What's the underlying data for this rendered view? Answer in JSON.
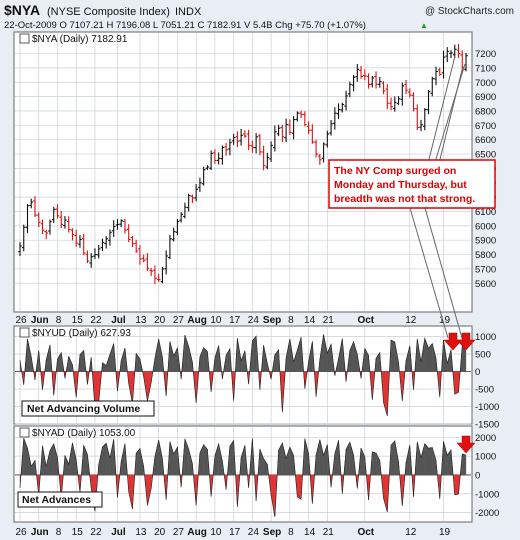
{
  "header": {
    "symbol": "$NYA",
    "name": "(NYSE Composite Index)",
    "exchange": "INDX",
    "copyright": "@ StockCharts.com",
    "quote": "22-Oct-2009   O 7107.21   H 7196.08   L 7051.21   C 7182.91   V 5.4B   Chg +75.70 (+1.07%)",
    "quote_arrow": "▲"
  },
  "colors": {
    "up": "#111111",
    "down": "#dd1111",
    "area_pos": "#555555",
    "area_neg": "#e03333",
    "grid": "#c8d0d8",
    "panel_bg": "#ffffff",
    "page_bg": "#e8eef4",
    "annotation": "#dd0000"
  },
  "date_labels": [
    "26",
    "Jun",
    "8",
    "15",
    "22",
    "Jul",
    "13",
    "20",
    "27",
    "Aug",
    "10",
    "17",
    "24",
    "Sep",
    "8",
    "14",
    "21",
    "Oct",
    "12",
    "19"
  ],
  "annotation": {
    "lines": [
      "The NY Comp surged on",
      "Monday and Thursday, but",
      "breadth was not that strong."
    ]
  },
  "chart_data": [
    {
      "type": "ohlc",
      "title": "$NYA (Daily) 7182.91",
      "legend": "$NYA (Daily) 7182.91",
      "ylim": [
        5400,
        7350
      ],
      "yticks": [
        5600,
        5700,
        5800,
        5900,
        6000,
        6100,
        6200,
        6300,
        6400,
        6500,
        6600,
        6700,
        6800,
        6900,
        7000,
        7100,
        7200
      ],
      "close": [
        5860,
        5990,
        6140,
        6165,
        6075,
        6025,
        5970,
        5950,
        6030,
        6115,
        6070,
        6010,
        6040,
        5975,
        5940,
        5880,
        5905,
        5810,
        5755,
        5785,
        5800,
        5840,
        5885,
        5910,
        5955,
        5995,
        6010,
        6035,
        5970,
        5905,
        5875,
        5825,
        5770,
        5760,
        5705,
        5685,
        5635,
        5625,
        5700,
        5790,
        5910,
        5960,
        6030,
        6080,
        6130,
        6210,
        6195,
        6255,
        6300,
        6390,
        6410,
        6505,
        6455,
        6470,
        6545,
        6530,
        6580,
        6615,
        6590,
        6630,
        6625,
        6560,
        6545,
        6620,
        6515,
        6420,
        6475,
        6560,
        6655,
        6680,
        6620,
        6705,
        6650,
        6740,
        6785,
        6775,
        6705,
        6665,
        6585,
        6500,
        6460,
        6570,
        6640,
        6710,
        6785,
        6810,
        6845,
        6905,
        6985,
        7035,
        7090,
        7040,
        7045,
        6985,
        7030,
        6985,
        7005,
        6940,
        6855,
        6830,
        6860,
        6885,
        6975,
        6945,
        6910,
        6815,
        6685,
        6705,
        6810,
        6935,
        7025,
        7075,
        7055,
        7175,
        7215,
        7205,
        7230,
        7200,
        7105,
        7185
      ]
    },
    {
      "type": "area",
      "title": "$NYUD (Daily) 627.93",
      "legend": "$NYUD (Daily) 627.93",
      "label": "Net Advancing Volume",
      "ylim": [
        -1500,
        1300
      ],
      "yticks": [
        -1500,
        -1000,
        -500,
        0,
        500,
        1000
      ],
      "values": [
        320,
        -380,
        930,
        420,
        -240,
        600,
        -520,
        340,
        760,
        -680,
        350,
        540,
        -200,
        430,
        190,
        -740,
        480,
        600,
        -370,
        410,
        -1060,
        -880,
        250,
        170,
        490,
        800,
        -560,
        310,
        670,
        -340,
        -920,
        510,
        360,
        -150,
        -840,
        -320,
        380,
        930,
        410,
        -700,
        860,
        450,
        670,
        -220,
        1040,
        720,
        270,
        -900,
        420,
        680,
        570,
        -580,
        390,
        740,
        -210,
        460,
        650,
        -830,
        950,
        310,
        590,
        -360,
        880,
        1010,
        -520,
        750,
        230,
        -220,
        480,
        620,
        -1160,
        390,
        930,
        270,
        610,
        980,
        -490,
        280,
        860,
        -720,
        340,
        1060,
        520,
        780,
        -120,
        370,
        940,
        -290,
        600,
        850,
        490,
        -200,
        660,
        460,
        -810,
        380,
        540,
        -890,
        -1270,
        900,
        840,
        260,
        -840,
        310,
        730,
        -520,
        930,
        270,
        950,
        660,
        800,
        380,
        -730,
        900,
        220,
        630,
        -650,
        -590,
        750,
        630
      ]
    },
    {
      "type": "area",
      "title": "$NYAD (Daily) 1053.00",
      "legend": "$NYAD (Daily) 1053.00",
      "label": "Net Advances",
      "ylim": [
        -2500,
        2600
      ],
      "yticks": [
        -2000,
        -1000,
        0,
        1000,
        2000
      ],
      "values": [
        -680,
        1960,
        1430,
        460,
        770,
        -1100,
        1550,
        450,
        1300,
        1650,
        920,
        -1240,
        1040,
        560,
        1700,
        810,
        -930,
        1580,
        1080,
        -700,
        -1930,
        540,
        1480,
        1690,
        890,
        1890,
        -1190,
        720,
        1660,
        -880,
        -1810,
        1150,
        1410,
        450,
        -1620,
        -720,
        980,
        1850,
        860,
        -1320,
        1770,
        1120,
        1470,
        -650,
        1920,
        1380,
        600,
        -1620,
        1170,
        1610,
        1360,
        -1150,
        1010,
        1650,
        740,
        -780,
        1540,
        1820,
        -1690,
        920,
        1570,
        -680,
        1940,
        -1380,
        1380,
        860,
        560,
        -1070,
        -2230,
        1320,
        1690,
        880,
        1480,
        1040,
        -1160,
        -1290,
        1930,
        1120,
        -1520,
        1050,
        1880,
        1040,
        1610,
        -650,
        1120,
        1840,
        -990,
        1360,
        1740,
        1060,
        -720,
        1430,
        950,
        -1330,
        1230,
        1160,
        760,
        -1240,
        -1970,
        1580,
        1810,
        700,
        -1650,
        660,
        1590,
        -1160,
        1760,
        920,
        1660,
        1420,
        1460,
        760,
        -1270,
        1780,
        1050,
        1330,
        -1060,
        -1010,
        1120,
        1053
      ]
    }
  ]
}
